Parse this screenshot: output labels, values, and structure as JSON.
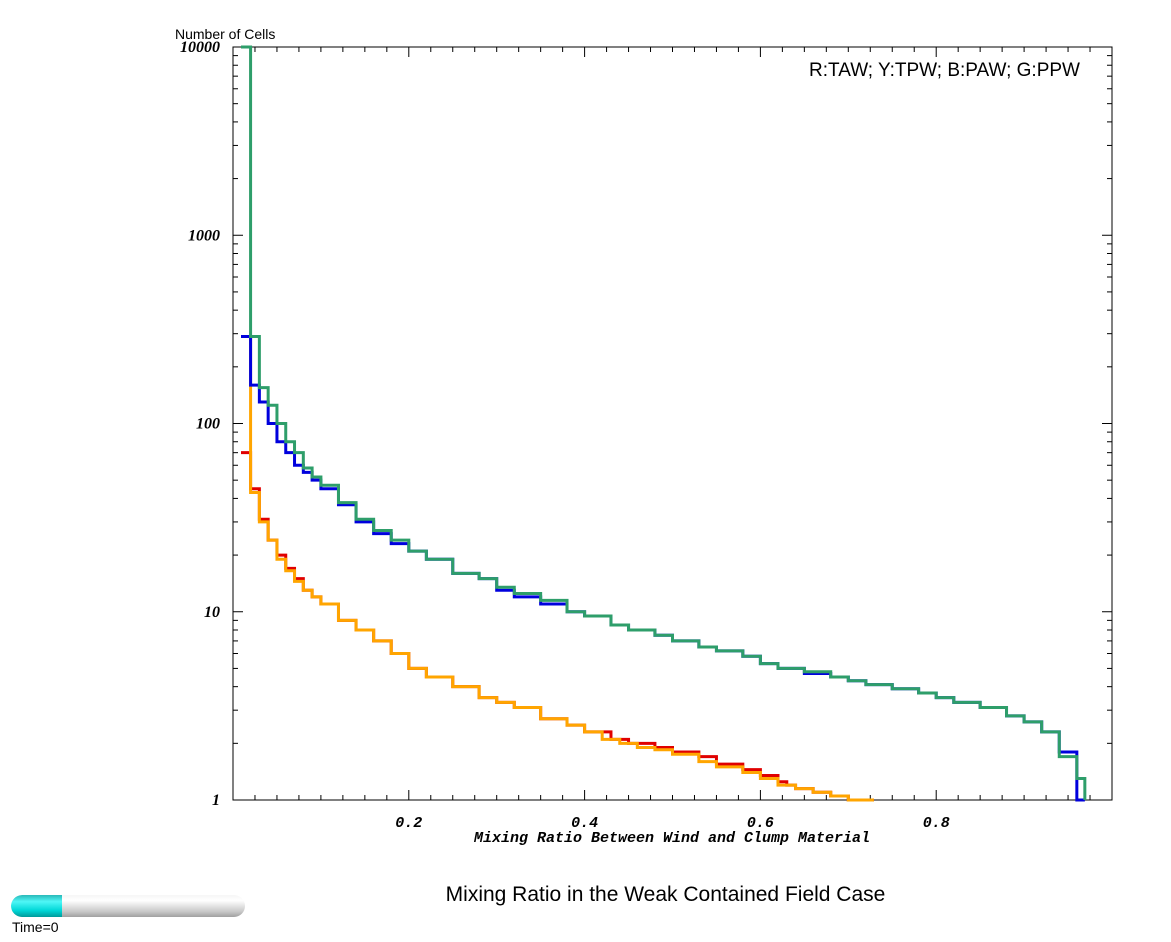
{
  "chart_data": {
    "type": "line",
    "step": true,
    "ylabel": "Number of Cells",
    "xlabel": "Mixing Ratio Between Wind and Clump Material",
    "yscale": "log",
    "xlim": [
      0,
      1
    ],
    "ylim": [
      1,
      10000
    ],
    "xticks": [
      0.2,
      0.4,
      0.6,
      0.8
    ],
    "yticks": [
      1,
      10,
      100,
      1000,
      10000
    ],
    "xtick_labels": [
      "0.2",
      "0.4",
      "0.6",
      "0.8"
    ],
    "ytick_labels": [
      "1",
      "10",
      "100",
      "1000",
      "10000"
    ],
    "grid": false,
    "legend_text": "R:TAW; Y:TPW; B:PAW; G:PPW",
    "legend_position": "top-right",
    "series": [
      {
        "color": "#e00000",
        "x": [
          0.01,
          0.02,
          0.03,
          0.04,
          0.05,
          0.06,
          0.07,
          0.08,
          0.09,
          0.1,
          0.12,
          0.14,
          0.16,
          0.18,
          0.2,
          0.22,
          0.25,
          0.28,
          0.3,
          0.32,
          0.35,
          0.38,
          0.4,
          0.43,
          0.45,
          0.48,
          0.5,
          0.53,
          0.55,
          0.58,
          0.6,
          0.62,
          0.63,
          0.64,
          0.66,
          0.68,
          0.7,
          0.72
        ],
        "y": [
          70,
          45,
          31,
          24,
          20,
          17,
          15,
          13,
          12,
          11,
          9,
          8,
          7,
          6,
          5,
          4.5,
          4,
          3.5,
          3.3,
          3.1,
          2.7,
          2.5,
          2.3,
          2.1,
          2.0,
          1.9,
          1.8,
          1.7,
          1.55,
          1.45,
          1.35,
          1.25,
          1.2,
          1.15,
          1.1,
          1.05,
          1.0,
          1.0
        ]
      },
      {
        "color": "#ffa500",
        "x": [
          0.01,
          0.02,
          0.03,
          0.04,
          0.05,
          0.06,
          0.07,
          0.08,
          0.09,
          0.1,
          0.12,
          0.14,
          0.16,
          0.18,
          0.2,
          0.22,
          0.25,
          0.28,
          0.3,
          0.32,
          0.35,
          0.38,
          0.4,
          0.42,
          0.44,
          0.46,
          0.48,
          0.5,
          0.53,
          0.55,
          0.58,
          0.6,
          0.62,
          0.64,
          0.66,
          0.68,
          0.7,
          0.72
        ],
        "y": [
          290,
          43,
          30,
          24,
          19,
          16.5,
          14.5,
          13,
          12,
          11,
          9,
          8,
          7,
          6,
          5,
          4.5,
          4,
          3.5,
          3.3,
          3.1,
          2.7,
          2.5,
          2.3,
          2.1,
          2.0,
          1.9,
          1.85,
          1.75,
          1.6,
          1.5,
          1.4,
          1.3,
          1.2,
          1.15,
          1.1,
          1.05,
          1.0,
          1.0
        ]
      },
      {
        "color": "#0000dd",
        "x": [
          0.01,
          0.02,
          0.03,
          0.04,
          0.05,
          0.06,
          0.07,
          0.08,
          0.09,
          0.1,
          0.12,
          0.14,
          0.16,
          0.18,
          0.2,
          0.22,
          0.25,
          0.28,
          0.3,
          0.32,
          0.35,
          0.38,
          0.4,
          0.43,
          0.45,
          0.48,
          0.5,
          0.53,
          0.55,
          0.58,
          0.6,
          0.62,
          0.65,
          0.68,
          0.7,
          0.72,
          0.75,
          0.78,
          0.8,
          0.82,
          0.85,
          0.88,
          0.9,
          0.92,
          0.94,
          0.96
        ],
        "y": [
          290,
          160,
          130,
          100,
          80,
          70,
          60,
          55,
          50,
          45,
          37,
          30,
          26,
          23,
          21,
          19,
          16,
          15,
          13,
          12,
          11,
          10,
          9.5,
          8.5,
          8.0,
          7.5,
          7.0,
          6.5,
          6.2,
          5.8,
          5.3,
          5.0,
          4.7,
          4.5,
          4.3,
          4.1,
          3.9,
          3.7,
          3.5,
          3.3,
          3.1,
          2.8,
          2.6,
          2.3,
          1.8,
          1.0
        ]
      },
      {
        "color": "#2e9e6a",
        "x": [
          0.01,
          0.02,
          0.03,
          0.04,
          0.05,
          0.06,
          0.07,
          0.08,
          0.09,
          0.1,
          0.12,
          0.14,
          0.16,
          0.18,
          0.2,
          0.22,
          0.25,
          0.28,
          0.3,
          0.32,
          0.35,
          0.38,
          0.4,
          0.43,
          0.45,
          0.48,
          0.5,
          0.53,
          0.55,
          0.58,
          0.6,
          0.62,
          0.65,
          0.68,
          0.7,
          0.72,
          0.75,
          0.78,
          0.8,
          0.82,
          0.85,
          0.88,
          0.9,
          0.92,
          0.94,
          0.96
        ],
        "y": [
          10000,
          290,
          155,
          125,
          100,
          80,
          70,
          58,
          52,
          47,
          38,
          31,
          27,
          24,
          21,
          19,
          16,
          15,
          13.5,
          12.5,
          11.5,
          10,
          9.5,
          8.5,
          8.0,
          7.5,
          7.0,
          6.5,
          6.2,
          5.8,
          5.3,
          5.0,
          4.8,
          4.5,
          4.3,
          4.1,
          3.9,
          3.7,
          3.5,
          3.3,
          3.1,
          2.8,
          2.6,
          2.3,
          1.7,
          1.3
        ]
      }
    ]
  },
  "plot_title": "Mixing Ratio in the Weak Contained Field Case",
  "time_slider": {
    "label": "Time=0",
    "progress": 0.22
  }
}
